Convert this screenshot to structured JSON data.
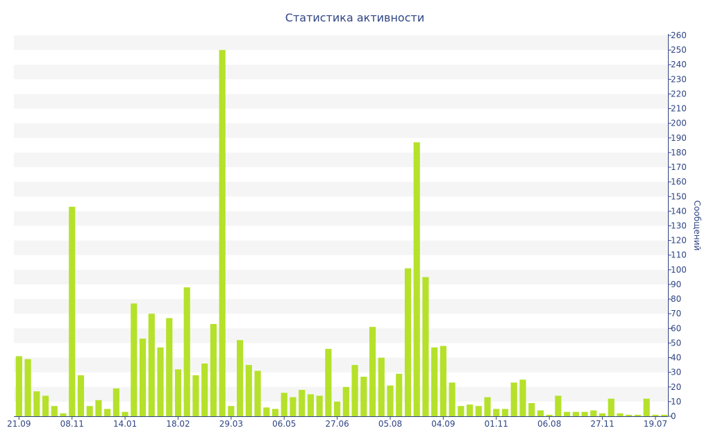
{
  "chart_data": {
    "type": "bar",
    "title": "Статистика активности",
    "xlabel": "",
    "ylabel": "Сообщений",
    "ylim": [
      0,
      260
    ],
    "y_ticks": [
      0,
      10,
      20,
      30,
      40,
      50,
      60,
      70,
      80,
      90,
      100,
      110,
      120,
      130,
      140,
      150,
      160,
      170,
      180,
      190,
      200,
      210,
      220,
      230,
      240,
      250,
      260
    ],
    "grid": "alternating horizontal bands",
    "x_tick_labels": [
      {
        "index": 0,
        "label": "21.09"
      },
      {
        "index": 6,
        "label": "08.11"
      },
      {
        "index": 12,
        "label": "14.01"
      },
      {
        "index": 18,
        "label": "18.02"
      },
      {
        "index": 24,
        "label": "29.03"
      },
      {
        "index": 30,
        "label": "06.05"
      },
      {
        "index": 36,
        "label": "27.06"
      },
      {
        "index": 42,
        "label": "05.08"
      },
      {
        "index": 48,
        "label": "04.09"
      },
      {
        "index": 54,
        "label": "01.11"
      },
      {
        "index": 60,
        "label": "06.08"
      },
      {
        "index": 66,
        "label": "27.11"
      },
      {
        "index": 72,
        "label": "19.07"
      }
    ],
    "values": [
      41,
      39,
      17,
      14,
      7,
      2,
      143,
      28,
      7,
      11,
      5,
      19,
      3,
      77,
      53,
      70,
      47,
      67,
      32,
      88,
      28,
      36,
      63,
      250,
      7,
      52,
      35,
      31,
      6,
      5,
      16,
      13,
      18,
      15,
      14,
      46,
      10,
      20,
      35,
      27,
      61,
      40,
      21,
      29,
      101,
      187,
      95,
      47,
      48,
      23,
      7,
      8,
      7,
      13,
      5,
      5,
      23,
      25,
      9,
      4,
      1,
      14,
      3,
      3,
      3,
      4,
      2,
      12,
      2,
      1,
      1,
      12,
      1,
      1
    ],
    "colors": {
      "bar": "#b5e12b",
      "axis": "#2f4483",
      "band": "#f5f5f5",
      "title": "#2f4483"
    }
  }
}
